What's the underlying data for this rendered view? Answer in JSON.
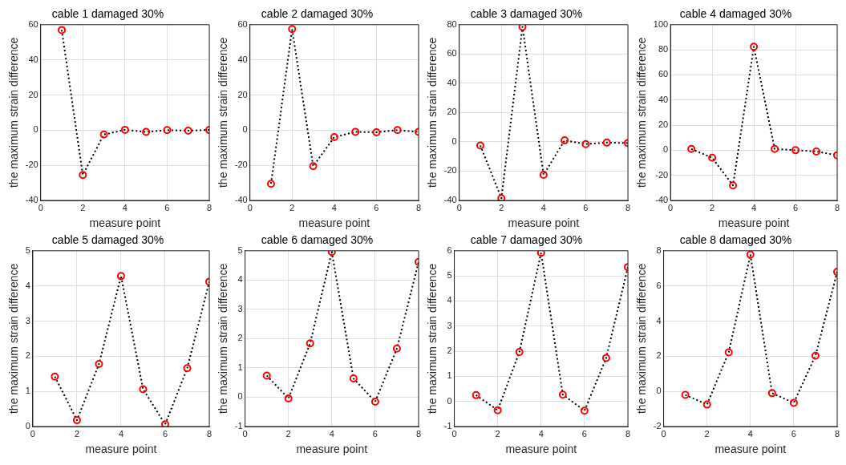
{
  "chart_data": [
    {
      "type": "line",
      "title": "cable 1 damaged 30%",
      "xlabel": "measure point",
      "ylabel": "the maximum strain difference",
      "x": [
        1,
        2,
        3,
        4,
        5,
        6,
        7,
        8
      ],
      "series": [
        {
          "color": "#000000",
          "colors": [
            "#ff0000",
            "#ff0000",
            "#ff0000",
            "#ff0000",
            "#ff0000",
            "#ff0000",
            "#ff0000",
            "#ff0000"
          ],
          "values": [
            57,
            -25.5,
            -2.5,
            0.2,
            -1,
            0,
            -0.3,
            0.1
          ]
        }
      ],
      "xlim": [
        0,
        8
      ],
      "xticks": [
        0,
        2,
        4,
        6,
        8
      ],
      "ylim": [
        -40,
        60
      ],
      "yticks": [
        -40,
        -20,
        0,
        20,
        40,
        60
      ],
      "grid": true,
      "marker": "circle",
      "line_style": "dotted"
    },
    {
      "type": "line",
      "title": "cable 2 damaged 30%",
      "xlabel": "measure point",
      "ylabel": "the maximum strain difference",
      "x": [
        1,
        2,
        3,
        4,
        5,
        6,
        7,
        8
      ],
      "series": [
        {
          "color": "#000000",
          "colors": [
            "#ff0000",
            "#ff0000",
            "#ff0000",
            "#ff0000",
            "#ff0000",
            "#ff0000",
            "#ff0000",
            "#ff0000"
          ],
          "values": [
            -30.5,
            57.5,
            -20.5,
            -4,
            -1,
            -1.2,
            0,
            -1
          ]
        }
      ],
      "xlim": [
        0,
        8
      ],
      "xticks": [
        0,
        2,
        4,
        6,
        8
      ],
      "ylim": [
        -40,
        60
      ],
      "yticks": [
        -40,
        -20,
        0,
        20,
        40,
        60
      ],
      "grid": true,
      "marker": "circle",
      "line_style": "dotted"
    },
    {
      "type": "line",
      "title": "cable 3 damaged 30%",
      "xlabel": "measure point",
      "ylabel": "the maximum strain difference",
      "x": [
        1,
        2,
        3,
        4,
        5,
        6,
        7,
        8
      ],
      "series": [
        {
          "color": "#000000",
          "colors": [
            "#ff0000",
            "#ff0000",
            "#ff0000",
            "#ff0000",
            "#ff0000",
            "#ff0000",
            "#ff0000",
            "#ff0000"
          ],
          "values": [
            -2.5,
            -38.5,
            78.5,
            -22.5,
            1,
            -1.5,
            -0.5,
            -0.8
          ]
        }
      ],
      "xlim": [
        0,
        8
      ],
      "xticks": [
        0,
        2,
        4,
        6,
        8
      ],
      "ylim": [
        -40,
        80
      ],
      "yticks": [
        -40,
        -20,
        0,
        20,
        40,
        60,
        80
      ],
      "grid": true,
      "marker": "circle",
      "line_style": "dotted"
    },
    {
      "type": "line",
      "title": "cable 4 damaged 30%",
      "xlabel": "measure point",
      "ylabel": "the maximum strain difference",
      "x": [
        1,
        2,
        3,
        4,
        5,
        6,
        7,
        8
      ],
      "series": [
        {
          "color": "#000000",
          "colors": [
            "#ff0000",
            "#ff0000",
            "#ff0000",
            "#ff0000",
            "#ff0000",
            "#ff0000",
            "#ff0000",
            "#ff0000"
          ],
          "values": [
            1,
            -6,
            -28,
            82.5,
            1,
            0,
            -1,
            -4
          ]
        }
      ],
      "xlim": [
        0,
        8
      ],
      "xticks": [
        0,
        2,
        4,
        6,
        8
      ],
      "ylim": [
        -40,
        100
      ],
      "yticks": [
        -40,
        -20,
        0,
        20,
        40,
        60,
        80,
        100
      ],
      "grid": true,
      "marker": "circle",
      "line_style": "dotted"
    },
    {
      "type": "line",
      "title": "cable 5 damaged 30%",
      "xlabel": "measure point",
      "ylabel": "the maximum strain difference",
      "x": [
        1,
        2,
        3,
        4,
        5,
        6,
        7,
        8
      ],
      "series": [
        {
          "color": "#000000",
          "colors": [
            "#ff0000",
            "#ff0000",
            "#ff0000",
            "#ff0000",
            "#ff0000",
            "#ff0000",
            "#ff0000",
            "#ff0000"
          ],
          "values": [
            1.42,
            0.18,
            1.78,
            4.28,
            1.06,
            0.06,
            1.66,
            4.12
          ]
        }
      ],
      "xlim": [
        0,
        8
      ],
      "xticks": [
        0,
        2,
        4,
        6,
        8
      ],
      "ylim": [
        0,
        5
      ],
      "yticks": [
        0,
        1,
        2,
        3,
        4,
        5
      ],
      "grid": true,
      "marker": "circle",
      "line_style": "dotted"
    },
    {
      "type": "line",
      "title": "cable 6 damaged 30%",
      "xlabel": "measure point",
      "ylabel": "the maximum strain difference",
      "x": [
        1,
        2,
        3,
        4,
        5,
        6,
        7,
        8
      ],
      "series": [
        {
          "color": "#000000",
          "colors": [
            "#ff0000",
            "#ff0000",
            "#ff0000",
            "#ff0000",
            "#ff0000",
            "#ff0000",
            "#ff0000",
            "#ff0000"
          ],
          "values": [
            0.74,
            -0.04,
            1.84,
            4.96,
            0.64,
            -0.15,
            1.66,
            4.62
          ]
        }
      ],
      "xlim": [
        0,
        8
      ],
      "xticks": [
        0,
        2,
        4,
        6,
        8
      ],
      "ylim": [
        -1,
        5
      ],
      "yticks": [
        -1,
        0,
        1,
        2,
        3,
        4,
        5
      ],
      "grid": true,
      "marker": "circle",
      "line_style": "dotted"
    },
    {
      "type": "line",
      "title": "cable 7 damaged 30%",
      "xlabel": "measure point",
      "ylabel": "the maximum strain difference",
      "x": [
        1,
        2,
        3,
        4,
        5,
        6,
        7,
        8
      ],
      "series": [
        {
          "color": "#000000",
          "colors": [
            "#ff0000",
            "#ff0000",
            "#ff0000",
            "#ff0000",
            "#ff0000",
            "#ff0000",
            "#ff0000",
            "#ff0000"
          ],
          "values": [
            0.25,
            -0.35,
            1.97,
            5.92,
            0.27,
            -0.37,
            1.73,
            5.35
          ]
        }
      ],
      "xlim": [
        0,
        8
      ],
      "xticks": [
        0,
        2,
        4,
        6,
        8
      ],
      "ylim": [
        -1,
        6
      ],
      "yticks": [
        -1,
        0,
        1,
        2,
        3,
        4,
        5,
        6
      ],
      "grid": true,
      "marker": "circle",
      "line_style": "dotted"
    },
    {
      "type": "line",
      "title": "cable 8 damaged 30%",
      "xlabel": "measure point",
      "ylabel": "the maximum strain difference",
      "x": [
        1,
        2,
        3,
        4,
        5,
        6,
        7,
        8
      ],
      "series": [
        {
          "color": "#000000",
          "colors": [
            "#ff0000",
            "#ff0000",
            "#ff0000",
            "#ff0000",
            "#ff0000",
            "#ff0000",
            "#ff0000",
            "#ff0000"
          ],
          "values": [
            -0.2,
            -0.75,
            2.22,
            7.78,
            -0.1,
            -0.65,
            2.03,
            6.8
          ]
        }
      ],
      "xlim": [
        0,
        8
      ],
      "xticks": [
        0,
        2,
        4,
        6,
        8
      ],
      "ylim": [
        -2,
        8
      ],
      "yticks": [
        -2,
        0,
        2,
        4,
        6,
        8
      ],
      "grid": true,
      "marker": "circle",
      "line_style": "dotted"
    }
  ]
}
